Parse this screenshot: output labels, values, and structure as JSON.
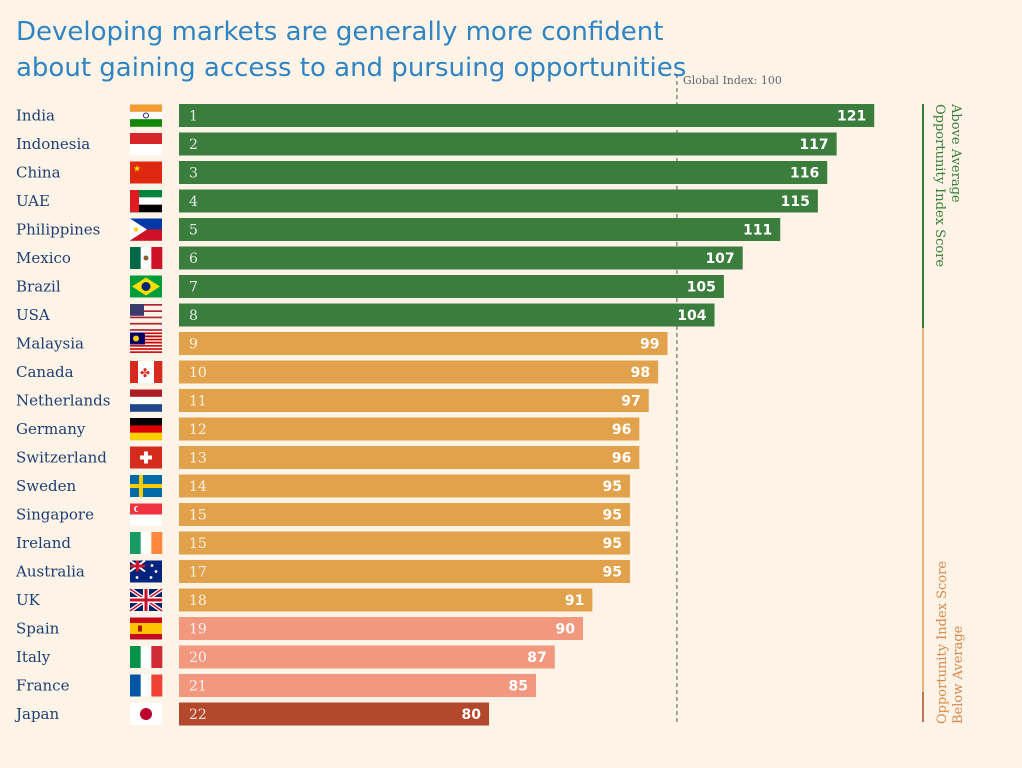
{
  "title_lines": [
    "Developing markets are generally more confident",
    "about gaining access to and pursuing opportunities"
  ],
  "colors": {
    "green": "#3a7d3c",
    "orange": "#e2a24b",
    "salmon": "#f1987f",
    "rust": "#b3482c",
    "text": "#1d3f73",
    "title": "#2f84c1"
  },
  "chart_data": {
    "type": "bar",
    "orientation": "horizontal",
    "title": "Developing markets are generally more confident about gaining access to and pursuing opportunities",
    "reference_line": {
      "value": 100,
      "label": "Global Index: 100"
    },
    "xlim": [
      47,
      123
    ],
    "categories": [
      "India",
      "Indonesia",
      "China",
      "UAE",
      "Philippines",
      "Mexico",
      "Brazil",
      "USA",
      "Malaysia",
      "Canada",
      "Netherlands",
      "Germany",
      "Switzerland",
      "Sweden",
      "Singapore",
      "Ireland",
      "Australia",
      "UK",
      "Spain",
      "Italy",
      "France",
      "Japan"
    ],
    "ranks": [
      "1",
      "2",
      "3",
      "4",
      "5",
      "6",
      "7",
      "8",
      "9",
      "10",
      "11",
      "12",
      "13",
      "14",
      "15",
      "15",
      "17",
      "18",
      "19",
      "20",
      "21",
      "22"
    ],
    "values": [
      121,
      117,
      116,
      115,
      111,
      107,
      105,
      104,
      99,
      98,
      97,
      96,
      96,
      95,
      95,
      95,
      95,
      91,
      90,
      87,
      85,
      80
    ],
    "bar_color_keys": [
      "green",
      "green",
      "green",
      "green",
      "green",
      "green",
      "green",
      "green",
      "orange",
      "orange",
      "orange",
      "orange",
      "orange",
      "orange",
      "orange",
      "orange",
      "orange",
      "orange",
      "salmon",
      "salmon",
      "salmon",
      "rust"
    ],
    "flag_icons": [
      "india-flag-icon",
      "indonesia-flag-icon",
      "china-flag-icon",
      "uae-flag-icon",
      "philippines-flag-icon",
      "mexico-flag-icon",
      "brazil-flag-icon",
      "usa-flag-icon",
      "malaysia-flag-icon",
      "canada-flag-icon",
      "netherlands-flag-icon",
      "germany-flag-icon",
      "switzerland-flag-icon",
      "sweden-flag-icon",
      "singapore-flag-icon",
      "ireland-flag-icon",
      "australia-flag-icon",
      "uk-flag-icon",
      "spain-flag-icon",
      "italy-flag-icon",
      "france-flag-icon",
      "japan-flag-icon"
    ],
    "brackets": [
      {
        "label_lines": [
          "Above Average",
          "Opportunity Index Score"
        ],
        "color_key": "green"
      },
      {
        "label_lines": [
          "Below Average",
          "Opportunity Index Score"
        ],
        "color_key": "orange"
      }
    ],
    "legend": "none",
    "grid": false
  }
}
